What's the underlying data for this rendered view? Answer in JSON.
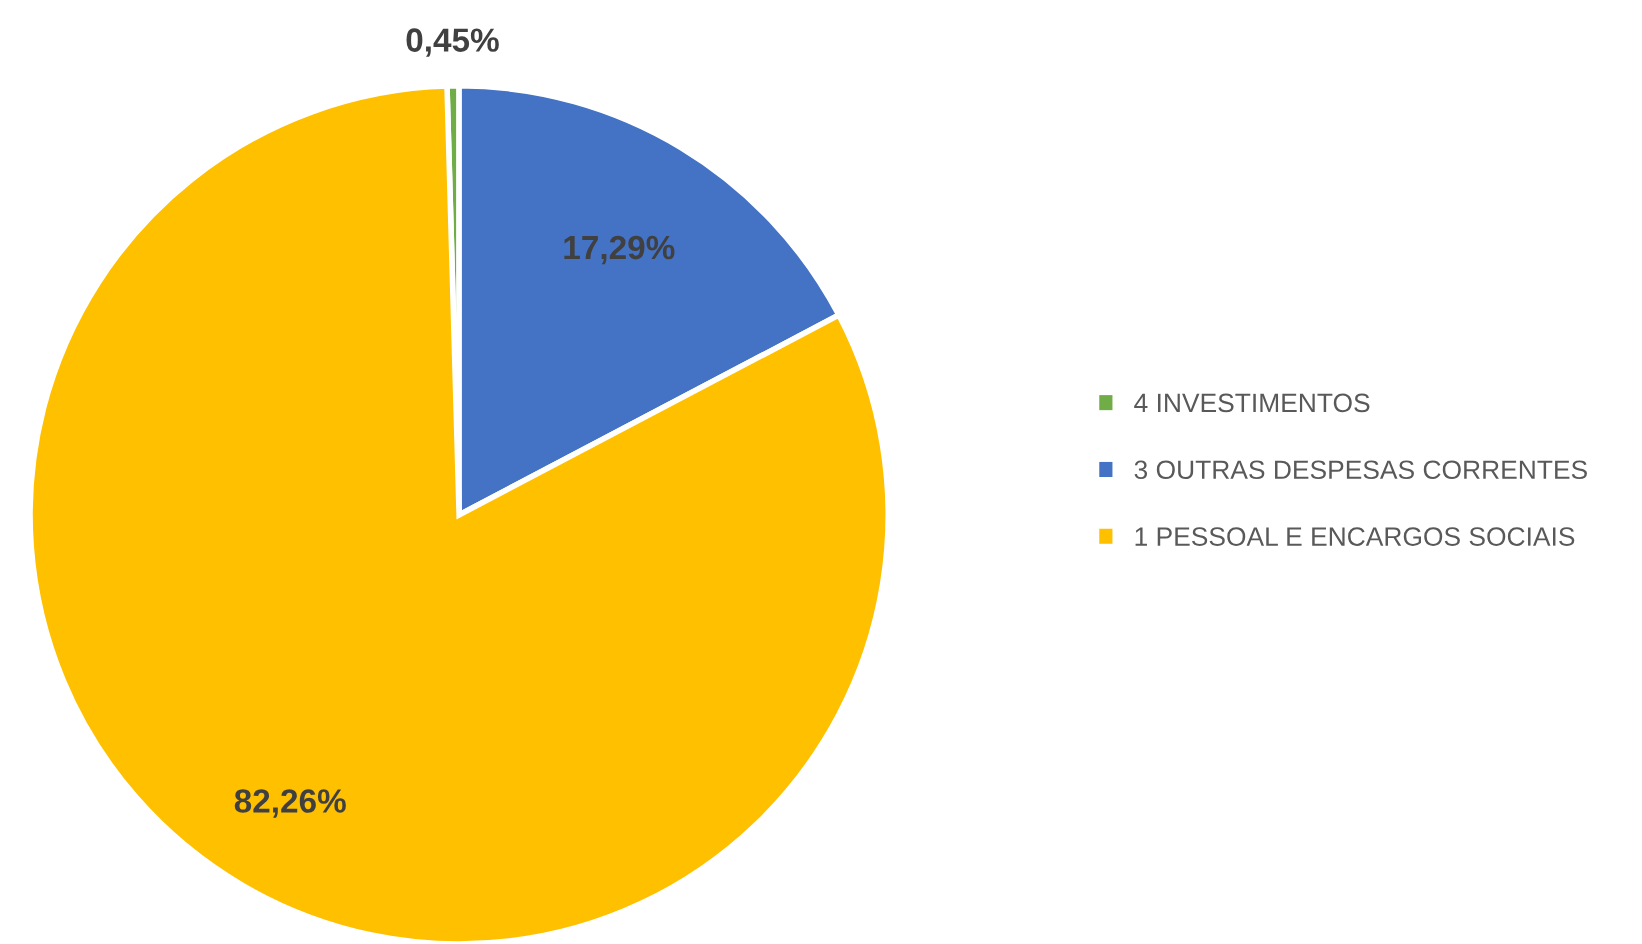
{
  "chart_data": {
    "type": "pie",
    "categories": [
      "4 INVESTIMENTOS",
      "3 OUTRAS DESPESAS CORRENTES",
      "1 PESSOAL E ENCARGOS SOCIAIS"
    ],
    "values": [
      0.45,
      17.29,
      82.26
    ],
    "colors": [
      "#70ad47",
      "#4472c4",
      "#ffc000"
    ],
    "value_labels": [
      "0,45%",
      "17,29%",
      "82,26%"
    ],
    "legend": "right"
  }
}
